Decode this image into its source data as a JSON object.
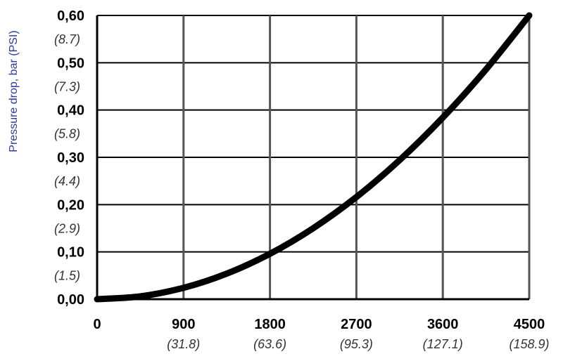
{
  "chart_data": {
    "type": "line",
    "ylabel": "Pressure drop, bar (PSI)",
    "xlabel": "",
    "title": "",
    "x_ticks": [
      {
        "value": 0,
        "label": "0",
        "alt": ""
      },
      {
        "value": 900,
        "label": "900",
        "alt": "(31.8)"
      },
      {
        "value": 1800,
        "label": "1800",
        "alt": "(63.6)"
      },
      {
        "value": 2700,
        "label": "2700",
        "alt": "(95.3)"
      },
      {
        "value": 3600,
        "label": "3600",
        "alt": "(127.1)"
      },
      {
        "value": 4500,
        "label": "4500",
        "alt": "(158.9)"
      }
    ],
    "y_ticks": [
      {
        "value": 0.0,
        "label": "0,00",
        "alt": ""
      },
      {
        "value": 0.1,
        "label": "0,10",
        "alt": "(1.5)"
      },
      {
        "value": 0.2,
        "label": "0,20",
        "alt": "(2.9)"
      },
      {
        "value": 0.3,
        "label": "0,30",
        "alt": "(4.4)"
      },
      {
        "value": 0.4,
        "label": "0,40",
        "alt": "(5.8)"
      },
      {
        "value": 0.5,
        "label": "0,50",
        "alt": "(7.3)"
      },
      {
        "value": 0.6,
        "label": "0,60",
        "alt": "(8.7)"
      }
    ],
    "xlim": [
      0,
      4500
    ],
    "ylim": [
      0,
      0.6
    ],
    "grid": true,
    "series": [
      {
        "color": "#000000",
        "x": [
          0,
          450,
          900,
          1350,
          1800,
          2250,
          2700,
          3150,
          3600,
          4050,
          4500
        ],
        "y": [
          0.0,
          0.006,
          0.024,
          0.054,
          0.096,
          0.15,
          0.216,
          0.294,
          0.384,
          0.486,
          0.6
        ]
      }
    ]
  }
}
